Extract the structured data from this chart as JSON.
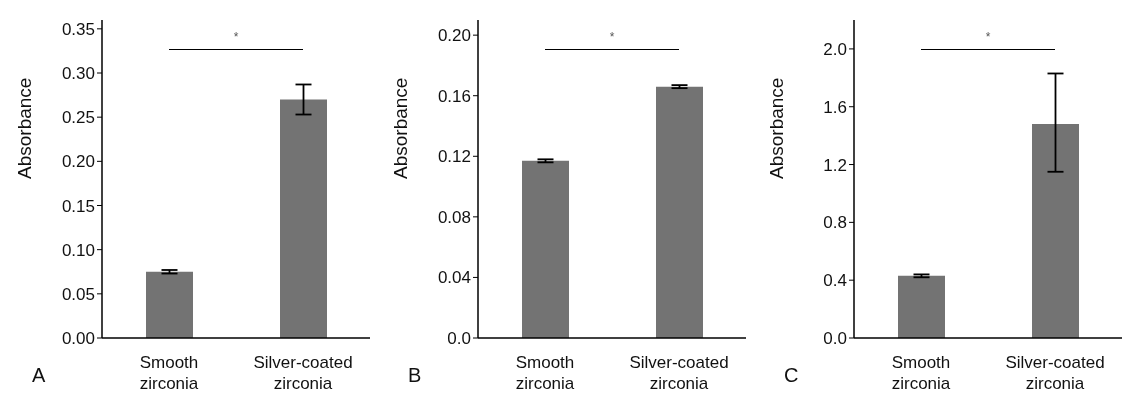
{
  "chart_data": [
    {
      "type": "bar",
      "ylabel": "Absorbance",
      "categories": [
        "Smooth zirconia",
        "Silver-coated zirconia"
      ],
      "values": [
        0.075,
        0.27
      ],
      "errors": [
        0.002,
        [
          0.253,
          0.287
        ]
      ],
      "color": "#737373",
      "ylim": [
        0,
        0.36
      ],
      "yticks": [
        {
          "value": 0,
          "label": "0.00"
        },
        0.05,
        {
          "value": 0.1,
          "label": "0.10"
        },
        0.15,
        {
          "value": 0.2,
          "label": "0.20"
        },
        0.25,
        {
          "value": 0.3,
          "label": "0.30"
        },
        0.35
      ],
      "grid": false,
      "annotations": [
        "*",
        "A"
      ]
    },
    {
      "type": "bar",
      "ylabel": "Absorbance",
      "categories": [
        "Smooth zirconia",
        "Silver-coated zirconia"
      ],
      "values": [
        0.117,
        0.166
      ],
      "errors": [
        0.001,
        0.001
      ],
      "color": "#737373",
      "ylim": [
        0,
        0.21
      ],
      "yticks": [
        {
          "value": 0,
          "label": "0.0"
        },
        0.04,
        0.08,
        {
          "value": 0.12,
          "label": "0.12"
        },
        0.16,
        {
          "value": 0.2,
          "label": "0.20"
        }
      ],
      "grid": false,
      "annotations": [
        "*",
        "B"
      ]
    },
    {
      "type": "bar",
      "ylabel": "Absorbance",
      "categories": [
        "Smooth zirconia",
        "Silver-coated zirconia"
      ],
      "values": [
        0.43,
        1.48
      ],
      "errors": [
        0.01,
        [
          1.15,
          1.83
        ]
      ],
      "color": "#737373",
      "ylim": [
        0,
        2.2
      ],
      "yticks": [
        {
          "value": 0,
          "label": "0.0"
        },
        0.4,
        0.8,
        1.2,
        1.6,
        {
          "value": 2,
          "label": "2.0"
        }
      ],
      "grid": false,
      "annotations": [
        "*",
        "C"
      ]
    }
  ]
}
